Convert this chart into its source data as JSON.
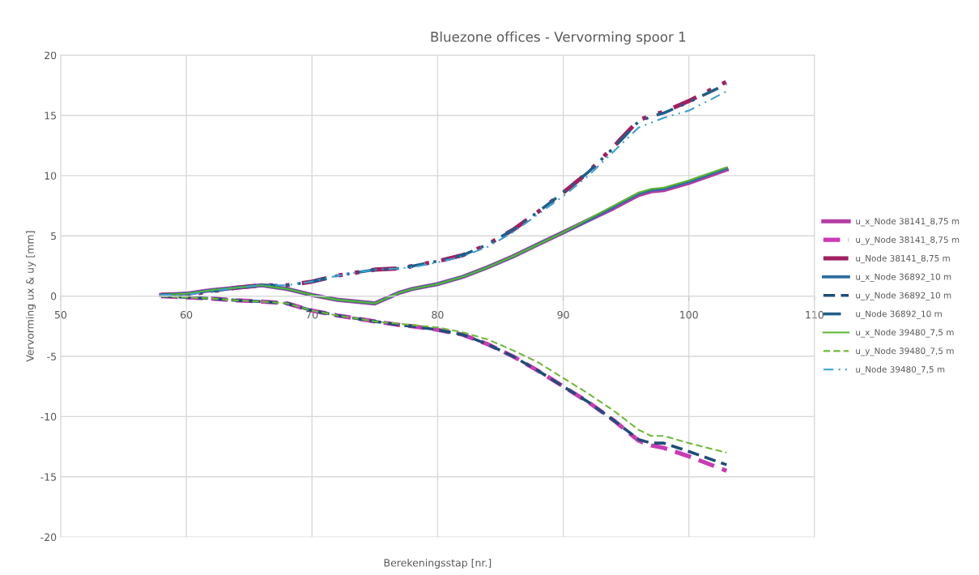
{
  "chart_data": {
    "type": "line",
    "title": "Bluezone offices - Vervorming spoor 1",
    "xlabel": "Berekeningsstap [nr.]",
    "ylabel": "Vervorming ux & uy [mm]",
    "xlim": [
      50,
      110
    ],
    "xticks": [
      50,
      60,
      70,
      80,
      90,
      100,
      110
    ],
    "ylim": [
      -20,
      20
    ],
    "yticks": [
      -20,
      -15,
      -10,
      -5,
      0,
      5,
      10,
      15,
      20
    ],
    "grid": true,
    "legend": "right",
    "marker": "none",
    "x": [
      58,
      60,
      62,
      64,
      66,
      68,
      70,
      72,
      75,
      77,
      78,
      80,
      82,
      84,
      86,
      88,
      90,
      92,
      94,
      96,
      97,
      98,
      100,
      103
    ],
    "series": [
      {
        "name": "u_x_Node 38141_8,75 m",
        "color": "#b43ca5",
        "line_style": "solid",
        "values": [
          0.1,
          0.2,
          0.5,
          0.7,
          0.9,
          0.6,
          0.1,
          -0.3,
          -0.6,
          0.3,
          0.6,
          1.0,
          1.6,
          2.4,
          3.3,
          4.3,
          5.3,
          6.3,
          7.3,
          8.4,
          8.7,
          8.8,
          9.4,
          10.5
        ]
      },
      {
        "name": "u_y_Node 38141_8,75 m",
        "color": "#c83cb4",
        "line_style": "dashed",
        "values": [
          0.0,
          -0.1,
          -0.2,
          -0.35,
          -0.45,
          -0.6,
          -1.2,
          -1.6,
          -2.1,
          -2.4,
          -2.5,
          -2.8,
          -3.2,
          -4.0,
          -5.0,
          -6.2,
          -7.5,
          -8.8,
          -10.3,
          -12.0,
          -12.4,
          -12.6,
          -13.3,
          -14.5
        ]
      },
      {
        "name": "u_Node 38141_8,75 m",
        "color": "#a02060",
        "line_style": "dashdot",
        "values": [
          0.1,
          0.1,
          0.4,
          0.7,
          0.9,
          0.9,
          1.2,
          1.7,
          2.2,
          2.3,
          2.5,
          2.9,
          3.4,
          4.3,
          5.5,
          7.0,
          8.6,
          10.3,
          12.4,
          14.6,
          15.0,
          15.3,
          16.2,
          17.8
        ]
      },
      {
        "name": "u_x_Node 36892_10 m",
        "color": "#2e6fa0",
        "line_style": "solid",
        "values": [
          0.1,
          0.2,
          0.5,
          0.7,
          0.9,
          0.6,
          0.1,
          -0.3,
          -0.6,
          0.3,
          0.6,
          1.0,
          1.6,
          2.4,
          3.3,
          4.3,
          5.3,
          6.3,
          7.4,
          8.5,
          8.8,
          8.9,
          9.5,
          10.6
        ]
      },
      {
        "name": "u_y_Node 36892_10 m",
        "color": "#1f4e79",
        "line_style": "dashed",
        "values": [
          0.0,
          -0.1,
          -0.2,
          -0.35,
          -0.45,
          -0.6,
          -1.2,
          -1.6,
          -2.1,
          -2.4,
          -2.5,
          -2.8,
          -3.2,
          -4.0,
          -5.0,
          -6.2,
          -7.5,
          -8.8,
          -10.3,
          -11.9,
          -12.2,
          -12.2,
          -12.9,
          -14.0
        ]
      },
      {
        "name": "u_Node 36892_10 m",
        "color": "#1f5f8b",
        "line_style": "dashdot",
        "values": [
          0.1,
          0.1,
          0.4,
          0.7,
          0.9,
          0.9,
          1.2,
          1.7,
          2.2,
          2.3,
          2.5,
          2.9,
          3.4,
          4.3,
          5.5,
          7.0,
          8.6,
          10.3,
          12.3,
          14.5,
          14.9,
          15.2,
          16.1,
          17.6
        ]
      },
      {
        "name": "u_x_Node 39480_7,5 m",
        "color": "#5cb531",
        "line_style": "solid",
        "values": [
          0.1,
          0.2,
          0.5,
          0.7,
          0.9,
          0.6,
          0.1,
          -0.3,
          -0.6,
          0.3,
          0.6,
          1.0,
          1.6,
          2.4,
          3.3,
          4.3,
          5.3,
          6.4,
          7.5,
          8.6,
          8.9,
          9.0,
          9.6,
          10.7
        ]
      },
      {
        "name": "u_y_Node 39480_7,5 m",
        "color": "#70b838",
        "line_style": "dashed",
        "values": [
          0.0,
          -0.1,
          -0.2,
          -0.35,
          -0.45,
          -0.6,
          -1.2,
          -1.6,
          -2.1,
          -2.3,
          -2.4,
          -2.6,
          -3.0,
          -3.6,
          -4.5,
          -5.5,
          -6.8,
          -8.1,
          -9.5,
          -11.1,
          -11.6,
          -11.6,
          -12.2,
          -13.0
        ]
      },
      {
        "name": "u_Node 39480_7,5 m",
        "color": "#3aa0d0",
        "line_style": "dashdot",
        "values": [
          0.1,
          0.1,
          0.4,
          0.7,
          0.9,
          0.9,
          1.2,
          1.7,
          2.2,
          2.3,
          2.4,
          2.8,
          3.3,
          4.1,
          5.3,
          6.8,
          8.3,
          10.0,
          12.0,
          14.0,
          14.4,
          14.8,
          15.4,
          17.0
        ]
      }
    ]
  }
}
